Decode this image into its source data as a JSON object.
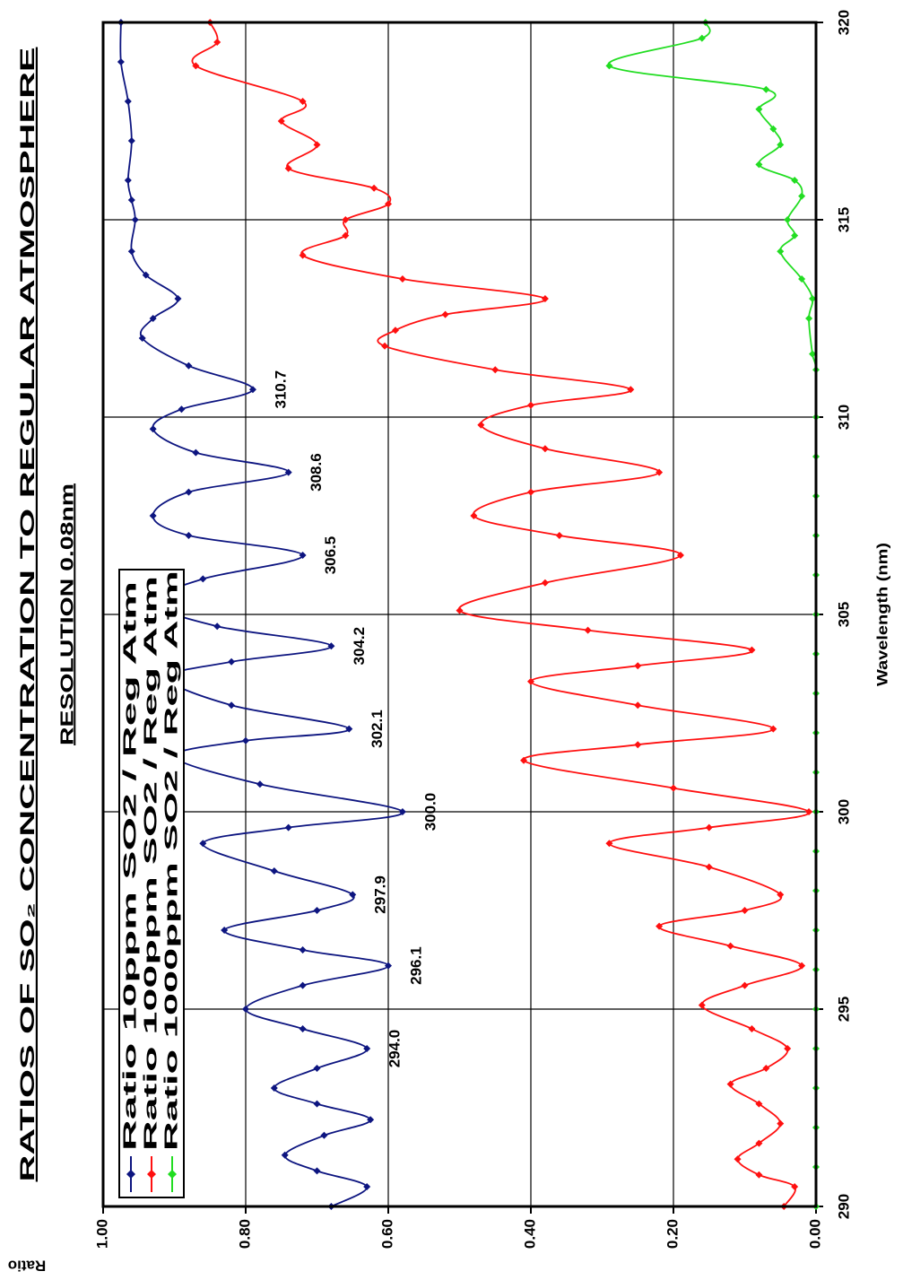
{
  "chart_data": {
    "type": "line",
    "title": "RATIOS OF SO₂ CONCENTRATION TO REGULAR ATMOSPHERE",
    "subtitle": "RESOLUTION 0.08nm",
    "x_label": "Wavelength (nm)",
    "y_label": "Ratio",
    "xlim": [
      290,
      320
    ],
    "ylim": [
      0,
      1
    ],
    "xticks": [
      290,
      295,
      300,
      305,
      310,
      315,
      320
    ],
    "yticks": [
      {
        "value": 0,
        "label": "0.00"
      },
      {
        "value": 0.2,
        "label": "0.20"
      },
      {
        "value": 0.4,
        "label": "0.40"
      },
      {
        "value": 0.6,
        "label": "0.60"
      },
      {
        "value": 0.8,
        "label": "0.80"
      },
      {
        "value": 1,
        "label": "1.00"
      }
    ],
    "grid": true,
    "legend": "upper left",
    "series": [
      {
        "name": "Ratio 10ppm SO2 / Reg Atm",
        "color": "#0d1580",
        "x": [
          290.0,
          290.5,
          290.9,
          291.3,
          291.8,
          292.2,
          292.6,
          293.0,
          293.5,
          294.0,
          294.5,
          295.0,
          295.6,
          296.1,
          296.5,
          297.0,
          297.5,
          297.9,
          298.5,
          299.2,
          299.6,
          300.0,
          300.7,
          301.4,
          301.8,
          302.1,
          302.7,
          303.4,
          303.8,
          304.2,
          304.7,
          305.3,
          305.9,
          306.5,
          307.0,
          307.5,
          308.1,
          308.6,
          309.1,
          309.7,
          310.2,
          310.7,
          311.3,
          312.0,
          312.5,
          313.0,
          313.6,
          314.2,
          315.0,
          315.5,
          316.0,
          317.0,
          318.0,
          319.0,
          320.0
        ],
        "values": [
          0.68,
          0.63,
          0.7,
          0.745,
          0.69,
          0.625,
          0.7,
          0.76,
          0.7,
          0.63,
          0.72,
          0.8,
          0.72,
          0.6,
          0.72,
          0.83,
          0.7,
          0.65,
          0.76,
          0.86,
          0.74,
          0.58,
          0.78,
          0.9,
          0.8,
          0.655,
          0.82,
          0.91,
          0.82,
          0.68,
          0.84,
          0.93,
          0.86,
          0.72,
          0.88,
          0.93,
          0.88,
          0.74,
          0.87,
          0.93,
          0.89,
          0.79,
          0.88,
          0.945,
          0.93,
          0.895,
          0.94,
          0.96,
          0.955,
          0.96,
          0.965,
          0.96,
          0.965,
          0.975,
          0.975
        ]
      },
      {
        "name": "Ratio 100ppm SO2 / Reg Atm",
        "color": "#ff1010",
        "x": [
          290.0,
          290.5,
          290.8,
          291.2,
          291.6,
          292.1,
          292.6,
          293.1,
          293.5,
          294.0,
          294.5,
          295.1,
          295.6,
          296.1,
          296.6,
          297.1,
          297.5,
          297.9,
          298.6,
          299.2,
          299.6,
          300.0,
          300.6,
          301.3,
          301.7,
          302.1,
          302.7,
          303.3,
          303.7,
          304.1,
          304.6,
          305.1,
          305.8,
          306.5,
          307.0,
          307.5,
          308.1,
          308.6,
          309.2,
          309.8,
          310.3,
          310.7,
          311.2,
          311.8,
          312.2,
          312.6,
          313.0,
          313.5,
          314.1,
          314.6,
          315.0,
          315.4,
          315.8,
          316.3,
          316.9,
          317.5,
          318.0,
          318.9,
          319.5,
          320.0
        ],
        "values": [
          0.045,
          0.03,
          0.08,
          0.11,
          0.08,
          0.05,
          0.08,
          0.12,
          0.07,
          0.04,
          0.09,
          0.16,
          0.1,
          0.02,
          0.12,
          0.22,
          0.1,
          0.05,
          0.15,
          0.29,
          0.15,
          0.01,
          0.2,
          0.41,
          0.25,
          0.06,
          0.25,
          0.4,
          0.25,
          0.09,
          0.32,
          0.5,
          0.38,
          0.19,
          0.36,
          0.48,
          0.4,
          0.22,
          0.38,
          0.47,
          0.4,
          0.26,
          0.45,
          0.605,
          0.59,
          0.52,
          0.38,
          0.58,
          0.72,
          0.66,
          0.66,
          0.6,
          0.62,
          0.74,
          0.7,
          0.75,
          0.72,
          0.87,
          0.84,
          0.85
        ]
      },
      {
        "name": "Ratio 1000ppm SO2 / Reg Atm",
        "color": "#22dd22",
        "x": [
          290.0,
          291.0,
          292.0,
          293.0,
          294.0,
          295.0,
          296.0,
          297.0,
          298.0,
          299.0,
          300.0,
          301.0,
          302.0,
          303.0,
          304.0,
          305.0,
          306.0,
          307.0,
          308.0,
          309.0,
          310.0,
          311.2,
          311.6,
          312.5,
          313.0,
          313.5,
          314.2,
          314.6,
          315.0,
          315.6,
          316.0,
          316.4,
          316.9,
          317.3,
          317.8,
          318.3,
          318.9,
          319.6,
          320.0
        ],
        "values": [
          0,
          0,
          0,
          0,
          0,
          0,
          0,
          0,
          0,
          0,
          0,
          0,
          0,
          0,
          0,
          0,
          0,
          0,
          0,
          0,
          0,
          0,
          0.005,
          0.01,
          0.005,
          0.02,
          0.05,
          0.03,
          0.04,
          0.02,
          0.03,
          0.08,
          0.05,
          0.06,
          0.08,
          0.07,
          0.29,
          0.16,
          0.155
        ]
      }
    ],
    "annotations": [
      {
        "x": 294.0,
        "label": "294.0"
      },
      {
        "x": 296.1,
        "label": "296.1"
      },
      {
        "x": 297.9,
        "label": "297.9"
      },
      {
        "x": 300.0,
        "label": "300.0"
      },
      {
        "x": 302.1,
        "label": "302.1"
      },
      {
        "x": 304.2,
        "label": "304.2"
      },
      {
        "x": 306.5,
        "label": "306.5"
      },
      {
        "x": 308.6,
        "label": "308.6"
      },
      {
        "x": 310.7,
        "label": "310.7"
      }
    ]
  }
}
